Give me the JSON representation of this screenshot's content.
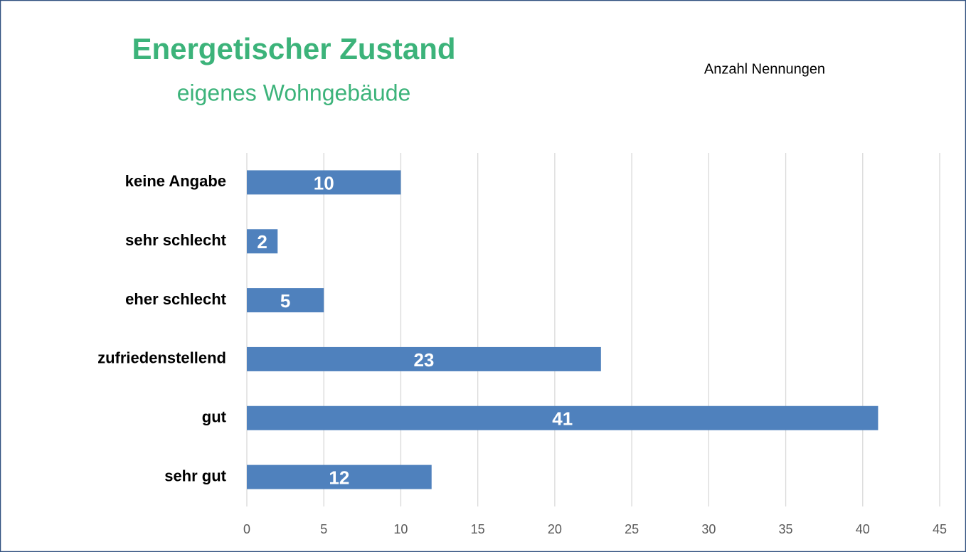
{
  "chart_data": {
    "type": "bar",
    "orientation": "horizontal",
    "title": "Energetischer Zustand",
    "subtitle": "eigenes Wohngebäude",
    "x_label": "Anzahl Nennungen",
    "categories": [
      "keine Angabe",
      "sehr schlecht",
      "eher schlecht",
      "zufriedenstellend",
      "gut",
      "sehr gut"
    ],
    "values": [
      10,
      2,
      5,
      23,
      41,
      12
    ],
    "color": "#4f81bd",
    "xlim": [
      0,
      45
    ],
    "xticks": [
      0,
      5,
      10,
      15,
      20,
      25,
      30,
      35,
      40,
      45
    ],
    "grid": true
  }
}
